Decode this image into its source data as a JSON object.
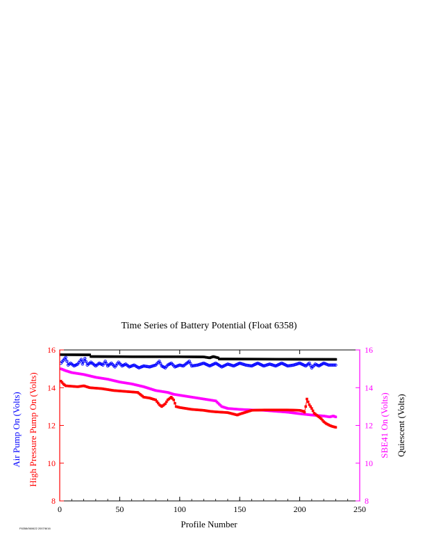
{
  "chart_data": {
    "type": "line",
    "title": "Time Series of Battery Potential (Float 6358)",
    "xlabel": "Profile Number",
    "xlim": [
      0,
      250
    ],
    "x_ticks": [
      0,
      50,
      100,
      150,
      200,
      250
    ],
    "ylim": [
      8,
      16
    ],
    "y_ticks": [
      8,
      10,
      12,
      14,
      16
    ],
    "left_axis_labels": [
      {
        "text": "Air Pump On (Volts)",
        "color": "#0000ff"
      },
      {
        "text": "High Pressure Pump On (Volts)",
        "color": "#ff0000"
      }
    ],
    "right_axis_labels": [
      {
        "text": "SBE41 On (Volts)",
        "color": "#ff00ff"
      },
      {
        "text": "Quiescent (Volts)",
        "color": "#000000"
      }
    ],
    "left_axis_color": "#ff0000",
    "right_axis_color": "#ff00ff",
    "grid": false,
    "series": [
      {
        "color": "#000000",
        "marker": "square",
        "points": [
          [
            1,
            15.75
          ],
          [
            25,
            15.74
          ],
          [
            26,
            15.65
          ],
          [
            60,
            15.64
          ],
          [
            100,
            15.64
          ],
          [
            120,
            15.63
          ],
          [
            125,
            15.58
          ],
          [
            128,
            15.65
          ],
          [
            132,
            15.58
          ],
          [
            133,
            15.52
          ],
          [
            180,
            15.51
          ],
          [
            230,
            15.5
          ]
        ]
      },
      {
        "color": "#0000ff",
        "marker": "circle",
        "points": [
          [
            1,
            15.3
          ],
          [
            3,
            15.45
          ],
          [
            5,
            15.6
          ],
          [
            7,
            15.2
          ],
          [
            9,
            15.3
          ],
          [
            12,
            15.15
          ],
          [
            15,
            15.25
          ],
          [
            18,
            15.5
          ],
          [
            19,
            15.25
          ],
          [
            21,
            15.55
          ],
          [
            23,
            15.2
          ],
          [
            26,
            15.35
          ],
          [
            30,
            15.15
          ],
          [
            33,
            15.3
          ],
          [
            36,
            15.2
          ],
          [
            38,
            15.4
          ],
          [
            40,
            15.15
          ],
          [
            43,
            15.3
          ],
          [
            46,
            15.1
          ],
          [
            49,
            15.35
          ],
          [
            52,
            15.15
          ],
          [
            55,
            15.25
          ],
          [
            58,
            15.1
          ],
          [
            62,
            15.2
          ],
          [
            66,
            15.05
          ],
          [
            70,
            15.15
          ],
          [
            75,
            15.1
          ],
          [
            80,
            15.2
          ],
          [
            83,
            15.4
          ],
          [
            85,
            15.15
          ],
          [
            88,
            15.05
          ],
          [
            90,
            15.2
          ],
          [
            93,
            15.3
          ],
          [
            96,
            15.1
          ],
          [
            100,
            15.2
          ],
          [
            103,
            15.15
          ],
          [
            106,
            15.3
          ],
          [
            108,
            15.4
          ],
          [
            110,
            15.15
          ],
          [
            115,
            15.2
          ],
          [
            120,
            15.3
          ],
          [
            125,
            15.15
          ],
          [
            130,
            15.3
          ],
          [
            135,
            15.1
          ],
          [
            140,
            15.25
          ],
          [
            145,
            15.15
          ],
          [
            150,
            15.3
          ],
          [
            155,
            15.2
          ],
          [
            160,
            15.15
          ],
          [
            165,
            15.3
          ],
          [
            170,
            15.15
          ],
          [
            175,
            15.25
          ],
          [
            180,
            15.15
          ],
          [
            185,
            15.3
          ],
          [
            190,
            15.15
          ],
          [
            195,
            15.2
          ],
          [
            200,
            15.3
          ],
          [
            205,
            15.15
          ],
          [
            208,
            15.3
          ],
          [
            210,
            15.05
          ],
          [
            213,
            15.25
          ],
          [
            216,
            15.15
          ],
          [
            220,
            15.3
          ],
          [
            224,
            15.2
          ],
          [
            228,
            15.2
          ],
          [
            230,
            15.2
          ]
        ]
      },
      {
        "color": "#ff00ff",
        "marker": "square",
        "points": [
          [
            1,
            15.0
          ],
          [
            5,
            14.9
          ],
          [
            10,
            14.8
          ],
          [
            20,
            14.7
          ],
          [
            30,
            14.55
          ],
          [
            40,
            14.45
          ],
          [
            50,
            14.3
          ],
          [
            60,
            14.2
          ],
          [
            70,
            14.05
          ],
          [
            80,
            13.85
          ],
          [
            90,
            13.75
          ],
          [
            95,
            13.65
          ],
          [
            100,
            13.6
          ],
          [
            110,
            13.5
          ],
          [
            120,
            13.4
          ],
          [
            130,
            13.3
          ],
          [
            135,
            13.0
          ],
          [
            140,
            12.9
          ],
          [
            150,
            12.85
          ],
          [
            160,
            12.82
          ],
          [
            170,
            12.8
          ],
          [
            180,
            12.75
          ],
          [
            190,
            12.7
          ],
          [
            200,
            12.62
          ],
          [
            210,
            12.55
          ],
          [
            220,
            12.5
          ],
          [
            225,
            12.45
          ],
          [
            228,
            12.5
          ],
          [
            230,
            12.45
          ]
        ]
      },
      {
        "color": "#ff0000",
        "marker": "square",
        "points": [
          [
            1,
            14.35
          ],
          [
            3,
            14.2
          ],
          [
            5,
            14.1
          ],
          [
            15,
            14.05
          ],
          [
            20,
            14.1
          ],
          [
            25,
            14.0
          ],
          [
            35,
            13.95
          ],
          [
            45,
            13.85
          ],
          [
            55,
            13.8
          ],
          [
            65,
            13.75
          ],
          [
            68,
            13.6
          ],
          [
            70,
            13.5
          ],
          [
            75,
            13.45
          ],
          [
            80,
            13.35
          ],
          [
            83,
            13.1
          ],
          [
            85,
            13.0
          ],
          [
            88,
            13.15
          ],
          [
            90,
            13.35
          ],
          [
            93,
            13.5
          ],
          [
            95,
            13.35
          ],
          [
            97,
            13.0
          ],
          [
            100,
            12.95
          ],
          [
            105,
            12.9
          ],
          [
            110,
            12.85
          ],
          [
            120,
            12.8
          ],
          [
            125,
            12.75
          ],
          [
            130,
            12.72
          ],
          [
            135,
            12.7
          ],
          [
            140,
            12.68
          ],
          [
            145,
            12.6
          ],
          [
            148,
            12.55
          ],
          [
            150,
            12.6
          ],
          [
            155,
            12.7
          ],
          [
            160,
            12.8
          ],
          [
            170,
            12.82
          ],
          [
            180,
            12.82
          ],
          [
            190,
            12.82
          ],
          [
            200,
            12.8
          ],
          [
            203,
            12.75
          ],
          [
            204,
            12.7
          ],
          [
            205,
            13.0
          ],
          [
            206,
            13.4
          ],
          [
            208,
            13.1
          ],
          [
            210,
            12.9
          ],
          [
            212,
            12.65
          ],
          [
            215,
            12.5
          ],
          [
            218,
            12.35
          ],
          [
            220,
            12.2
          ],
          [
            222,
            12.1
          ],
          [
            225,
            12.0
          ],
          [
            227,
            11.95
          ],
          [
            230,
            11.9
          ]
        ]
      }
    ]
  },
  "footnote": "F6358/060622 2007/8/16"
}
